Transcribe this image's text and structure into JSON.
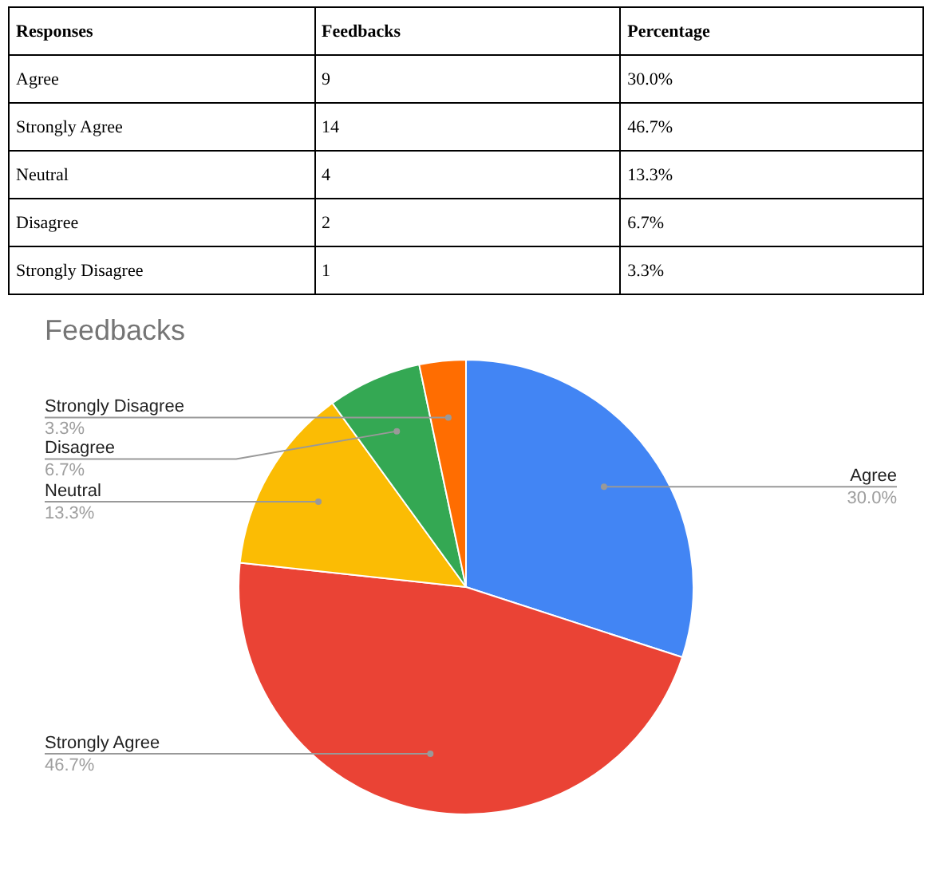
{
  "chart_data": {
    "type": "pie",
    "title": "Feedbacks",
    "annotations": [
      "Responses",
      "Feedbacks",
      "Percentage",
      "9",
      "14",
      "4",
      "2",
      "1"
    ],
    "categories": [
      "Agree",
      "Strongly Agree",
      "Neutral",
      "Disagree",
      "Strongly Disagree"
    ],
    "values": [
      30.0,
      46.7,
      13.3,
      6.7,
      3.3
    ],
    "value_labels": [
      "30.0%",
      "46.7%",
      "13.3%",
      "6.7%",
      "3.3%"
    ],
    "colors": [
      "#4285f4",
      "#ea4335",
      "#fbbc04",
      "#34a853",
      "#ff6d01"
    ],
    "legend": false
  }
}
